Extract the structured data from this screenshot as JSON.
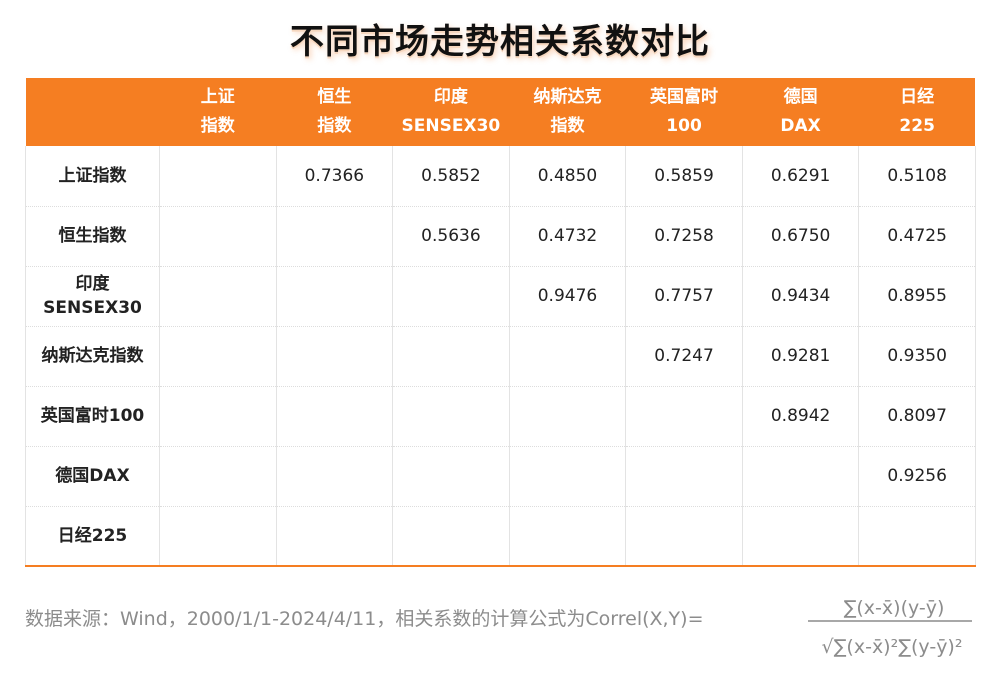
{
  "title": "不同市场走势相关系数对比",
  "columns": [
    "",
    "上证\n指数",
    "恒生\n指数",
    "印度\nSENSEX30",
    "纳斯达克\n指数",
    "英国富时\n100",
    "德国\nDAX",
    "日经\n225"
  ],
  "rows": [
    {
      "label": "上证指数",
      "cells": [
        "",
        "0.7366",
        "0.5852",
        "0.4850",
        "0.5859",
        "0.6291",
        "0.5108"
      ]
    },
    {
      "label": "恒生指数",
      "cells": [
        "",
        "",
        "0.5636",
        "0.4732",
        "0.7258",
        "0.6750",
        "0.4725"
      ]
    },
    {
      "label": "印度\nSENSEX30",
      "cells": [
        "",
        "",
        "",
        "0.9476",
        "0.7757",
        "0.9434",
        "0.8955"
      ]
    },
    {
      "label": "纳斯达克指数",
      "cells": [
        "",
        "",
        "",
        "",
        "0.7247",
        "0.9281",
        "0.9350"
      ]
    },
    {
      "label": "英国富时100",
      "cells": [
        "",
        "",
        "",
        "",
        "",
        "0.8942",
        "0.8097"
      ]
    },
    {
      "label": "德国DAX",
      "cells": [
        "",
        "",
        "",
        "",
        "",
        "",
        "0.9256"
      ]
    },
    {
      "label": "日经225",
      "cells": [
        "",
        "",
        "",
        "",
        "",
        "",
        ""
      ]
    }
  ],
  "footer": {
    "text": "数据来源：Wind，2000/1/1-2024/4/11，相关系数的计算公式为Correl(X,Y)=",
    "formula_numerator": "∑(x-x̄)(y-ȳ)",
    "formula_denominator": "√∑(x-x̄)²∑(y-ȳ)²"
  },
  "colors": {
    "header_bg": "#f57e22",
    "header_text": "#ffffff",
    "footer_text": "#8c8c8c"
  }
}
